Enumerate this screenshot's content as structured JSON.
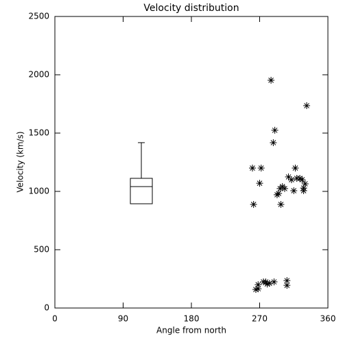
{
  "chart_data": {
    "type": "scatter",
    "title": "Velocity distribution",
    "x_label": "Angle from north",
    "y_label": "Velocity (km/s)",
    "x": [
      260.5,
      262,
      272,
      270,
      285,
      288,
      290,
      293,
      295,
      297,
      298,
      300,
      303,
      308,
      312,
      315,
      317,
      319,
      323,
      326,
      328,
      330,
      332,
      328,
      265,
      268,
      275,
      278,
      280,
      283,
      289,
      306,
      306,
      268
    ],
    "values": [
      1200,
      888,
      1200,
      1070,
      1953,
      1418,
      1524,
      971,
      982,
      1024,
      888,
      1041,
      1024,
      1124,
      1100,
      1006,
      1200,
      1112,
      1112,
      1100,
      1029,
      1065,
      1735,
      1006,
      159,
      200,
      224,
      224,
      206,
      212,
      224,
      194,
      235,
      165
    ],
    "color": "#000000",
    "box": {
      "x": 114,
      "q1": 894,
      "median": 1041,
      "q3": 1112,
      "min": 894,
      "max": 1418
    },
    "xlim": [
      0,
      360
    ],
    "xticks": [
      0,
      90,
      180,
      270,
      360
    ],
    "ylim": [
      0,
      2500
    ],
    "yticks": [
      0,
      500,
      1000,
      1500,
      2000,
      2500
    ]
  }
}
